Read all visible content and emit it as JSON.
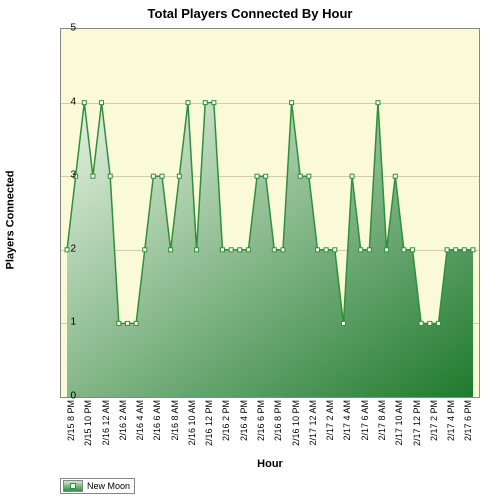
{
  "chart": {
    "type": "area",
    "title": "Total Players Connected By Hour",
    "title_fontsize": 13,
    "xlabel": "Hour",
    "ylabel": "Players Connected",
    "label_fontsize": 11,
    "background_color": "#fbfad8",
    "grid_color": "#cfcfa8",
    "frame_color": "#888888",
    "ylim": [
      0,
      5
    ],
    "ytick_step": 1,
    "yticks": [
      0,
      1,
      2,
      3,
      4,
      5
    ],
    "x_categories": [
      "2/15 8 PM",
      "2/15 9 PM",
      "2/15 10 PM",
      "2/15 11 PM",
      "2/16 12 AM",
      "2/16 1 AM",
      "2/16 2 AM",
      "2/16 3 AM",
      "2/16 4 AM",
      "2/16 5 AM",
      "2/16 6 AM",
      "2/16 7 AM",
      "2/16 8 AM",
      "2/16 9 AM",
      "2/16 10 AM",
      "2/16 11 AM",
      "2/16 12 PM",
      "2/16 1 PM",
      "2/16 2 PM",
      "2/16 3 PM",
      "2/16 4 PM",
      "2/16 5 PM",
      "2/16 6 PM",
      "2/16 7 PM",
      "2/16 8 PM",
      "2/16 9 PM",
      "2/16 10 PM",
      "2/16 11 PM",
      "2/17 12 AM",
      "2/17 1 AM",
      "2/17 2 AM",
      "2/17 3 AM",
      "2/17 4 AM",
      "2/17 5 AM",
      "2/17 6 AM",
      "2/17 7 AM",
      "2/17 8 AM",
      "2/17 9 AM",
      "2/17 10 AM",
      "2/17 11 AM",
      "2/17 12 PM",
      "2/17 1 PM",
      "2/17 2 PM",
      "2/17 3 PM",
      "2/17 4 PM",
      "2/17 5 PM",
      "2/17 6 PM",
      "2/17 7 PM"
    ],
    "x_tick_every": 2,
    "series": {
      "name": "New Moon",
      "line_color": "#2f8f3a",
      "line_width": 1.5,
      "marker_style": "square",
      "marker_size": 4,
      "marker_fill": "#ffffff",
      "marker_stroke": "#2f8f3a",
      "fill_gradient_top": "#e8f3e2",
      "fill_gradient_bottom": "#1f7a2e",
      "values": [
        2,
        3,
        4,
        3,
        4,
        3,
        1,
        1,
        1,
        2,
        3,
        3,
        2,
        3,
        4,
        2,
        4,
        4,
        2,
        2,
        2,
        2,
        3,
        3,
        2,
        2,
        4,
        3,
        3,
        2,
        2,
        2,
        1,
        3,
        2,
        2,
        4,
        2,
        3,
        2,
        2,
        1,
        1,
        1,
        2,
        2,
        2,
        2
      ]
    },
    "legend": {
      "label": "New Moon",
      "position": "bottom-left"
    }
  }
}
